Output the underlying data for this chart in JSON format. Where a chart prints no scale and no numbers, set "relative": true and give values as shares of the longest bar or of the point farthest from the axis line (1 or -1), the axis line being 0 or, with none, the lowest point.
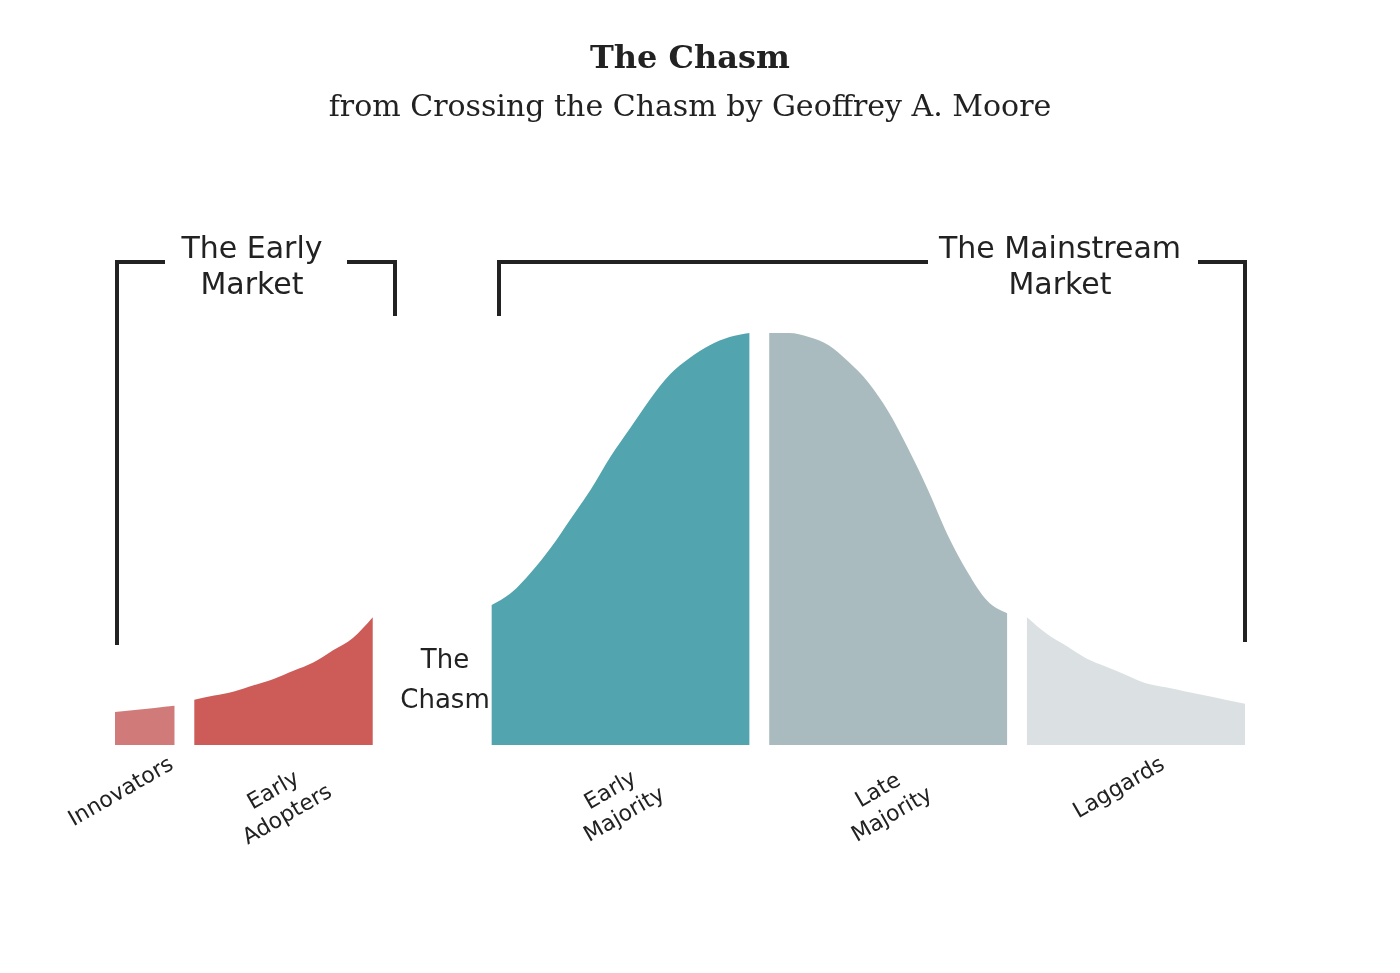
{
  "chart_data": {
    "type": "area",
    "title": "The Chasm",
    "subtitle": "from Crossing the Chasm by Geoffrey A. Moore",
    "relative": true,
    "legend": false,
    "categories": [
      null,
      null,
      null,
      null,
      null,
      null,
      null,
      null,
      null,
      null,
      null,
      null,
      null,
      null,
      null,
      null,
      null,
      null,
      null,
      null,
      null,
      null,
      null,
      null,
      null,
      null,
      null,
      null,
      null,
      null,
      null,
      null,
      null,
      null,
      null,
      null,
      null,
      null,
      null,
      null,
      null,
      null,
      null,
      null,
      null,
      null,
      null,
      null,
      null,
      null,
      null,
      null,
      null,
      null,
      null,
      null,
      null,
      null
    ],
    "series": [
      {
        "name": "Innovators",
        "color": "#d17a7a",
        "values": [
          0.08,
          0.085,
          0.09,
          0.095,
          null,
          null,
          null,
          null,
          null,
          null,
          null,
          null,
          null,
          null,
          null,
          null,
          null,
          null,
          null,
          null,
          null,
          null,
          null,
          null,
          null,
          null,
          null,
          null,
          null,
          null,
          null,
          null,
          null,
          null,
          null,
          null,
          null,
          null,
          null,
          null,
          null,
          null,
          null,
          null,
          null,
          null,
          null,
          null,
          null,
          null,
          null,
          null,
          null,
          null,
          null,
          null,
          null,
          null
        ]
      },
      {
        "name": "Early Adopters",
        "color": "#cd5c58",
        "values": [
          null,
          null,
          null,
          null,
          0.11,
          0.12,
          0.13,
          0.145,
          0.16,
          0.18,
          0.2,
          0.23,
          0.26,
          0.31,
          null,
          null,
          null,
          null,
          null,
          null,
          null,
          null,
          null,
          null,
          null,
          null,
          null,
          null,
          null,
          null,
          null,
          null,
          null,
          null,
          null,
          null,
          null,
          null,
          null,
          null,
          null,
          null,
          null,
          null,
          null,
          null,
          null,
          null,
          null,
          null,
          null,
          null,
          null,
          null,
          null,
          null,
          null,
          null
        ]
      },
      {
        "name": "Early Majority",
        "color": "#52a4ae",
        "values": [
          null,
          null,
          null,
          null,
          null,
          null,
          null,
          null,
          null,
          null,
          null,
          null,
          null,
          null,
          null,
          null,
          null,
          null,
          null,
          0.34,
          0.37,
          0.42,
          0.48,
          0.55,
          0.62,
          0.7,
          0.77,
          0.84,
          0.9,
          0.94,
          0.97,
          0.99,
          1.0,
          null,
          null,
          null,
          null,
          null,
          null,
          null,
          null,
          null,
          null,
          null,
          null,
          null,
          null,
          null,
          null,
          null,
          null,
          null,
          null,
          null,
          null,
          null,
          null,
          null
        ]
      },
      {
        "name": "Late Majority",
        "color": "#a9bbbf",
        "values": [
          null,
          null,
          null,
          null,
          null,
          null,
          null,
          null,
          null,
          null,
          null,
          null,
          null,
          null,
          null,
          null,
          null,
          null,
          null,
          null,
          null,
          null,
          null,
          null,
          null,
          null,
          null,
          null,
          null,
          null,
          null,
          null,
          null,
          1.0,
          1.0,
          0.99,
          0.97,
          0.93,
          0.88,
          0.81,
          0.72,
          0.62,
          0.51,
          0.42,
          0.35,
          0.32,
          null,
          null,
          null,
          null,
          null,
          null,
          null,
          null,
          null,
          null,
          null,
          null
        ]
      },
      {
        "name": "Laggards",
        "color": "#dbe0e2",
        "values": [
          null,
          null,
          null,
          null,
          null,
          null,
          null,
          null,
          null,
          null,
          null,
          null,
          null,
          null,
          null,
          null,
          null,
          null,
          null,
          null,
          null,
          null,
          null,
          null,
          null,
          null,
          null,
          null,
          null,
          null,
          null,
          null,
          null,
          null,
          null,
          null,
          null,
          null,
          null,
          null,
          null,
          null,
          null,
          null,
          null,
          null,
          0.31,
          0.27,
          0.24,
          0.21,
          0.19,
          0.17,
          0.15,
          0.14,
          0.13,
          0.12,
          0.11,
          0.1
        ]
      }
    ],
    "annotations": [
      "The Early Market",
      "The Mainstream Market",
      "The Chasm"
    ]
  }
}
